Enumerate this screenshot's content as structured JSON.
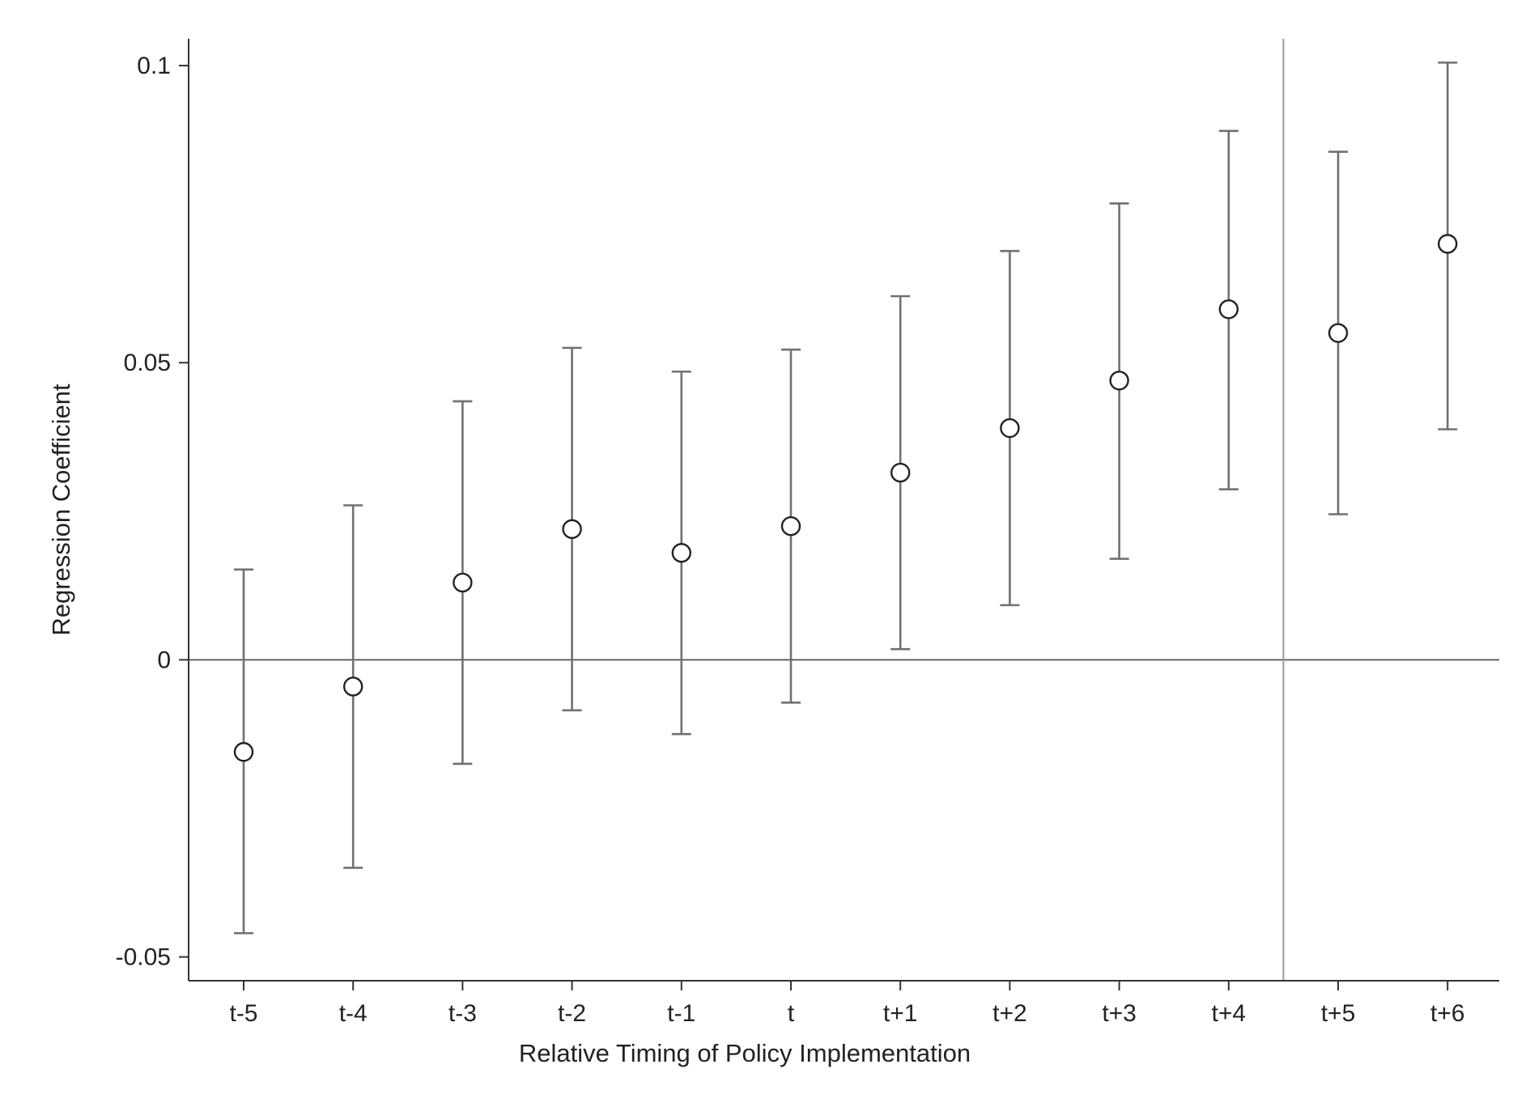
{
  "chart_data": {
    "type": "scatter",
    "title": "",
    "xlabel": "Relative Timing of Policy Implementation",
    "ylabel": "Regression Coefficient",
    "categories": [
      "t-5",
      "t-4",
      "t-3",
      "t-2",
      "t-1",
      "t",
      "t+1",
      "t+2",
      "t+3",
      "t+4",
      "t+5",
      "t+6"
    ],
    "series": [
      {
        "values": [
          -0.0155,
          -0.0045,
          0.013,
          0.022,
          0.018,
          0.0225,
          0.0315,
          0.039,
          0.047,
          0.059,
          0.055,
          0.07
        ],
        "lower": [
          -0.046,
          -0.035,
          -0.0175,
          -0.0085,
          -0.0125,
          -0.0072,
          0.0018,
          0.0092,
          0.017,
          0.0287,
          0.0245,
          0.0388
        ],
        "upper": [
          0.0152,
          0.026,
          0.0435,
          0.0525,
          0.0485,
          0.0522,
          0.0612,
          0.0688,
          0.0768,
          0.089,
          0.0855,
          0.1005
        ]
      }
    ],
    "ylim": [
      -0.054,
      0.1045
    ],
    "yticks": [
      -0.05,
      0,
      0.05,
      0.1
    ],
    "ytick_labels": [
      "-0.05",
      "0",
      "0.05",
      "0.1"
    ],
    "reference_lines": {
      "horizontal_y": 0,
      "vertical_between": [
        "t+4",
        "t+5"
      ]
    },
    "legend": "none",
    "grid": false,
    "colors": {
      "marker": "#222222",
      "errorbar": "#707070",
      "axis": "#333333",
      "reference": "#444444",
      "vertical_reference": "#9a9a9a"
    }
  }
}
